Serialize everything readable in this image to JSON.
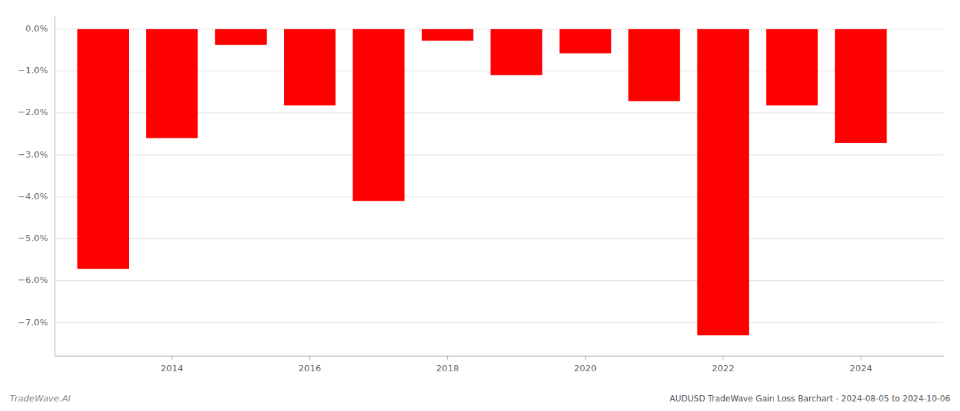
{
  "chart_data": {
    "type": "bar",
    "title": "AUDUSD TradeWave Gain Loss Barchart - 2024-08-05 to 2024-10-06",
    "annotations": [
      "TradeWave.AI"
    ],
    "x": [
      2013,
      2014,
      2015,
      2016,
      2017,
      2018,
      2019,
      2020,
      2021,
      2022,
      2023,
      2024
    ],
    "values": [
      -5.72,
      -2.6,
      -0.38,
      -1.82,
      -4.1,
      -0.28,
      -1.1,
      -0.58,
      -1.72,
      -7.3,
      -1.82,
      -2.72
    ],
    "color": "#ff0000",
    "xlim": [
      2012.3,
      2025.2
    ],
    "xticks": [
      2014,
      2016,
      2018,
      2020,
      2022,
      2024
    ],
    "ylim": [
      -7.8,
      0.3
    ],
    "yticks": [
      {
        "value": 0.0,
        "label": "0.0%"
      },
      {
        "value": -1.0,
        "label": "−1.0%"
      },
      {
        "value": -2.0,
        "label": "−2.0%"
      },
      {
        "value": -3.0,
        "label": "−3.0%"
      },
      {
        "value": -4.0,
        "label": "−4.0%"
      },
      {
        "value": -5.0,
        "label": "−5.0%"
      },
      {
        "value": -6.0,
        "label": "−6.0%"
      },
      {
        "value": -7.0,
        "label": "−7.0%"
      }
    ],
    "grid": true
  }
}
